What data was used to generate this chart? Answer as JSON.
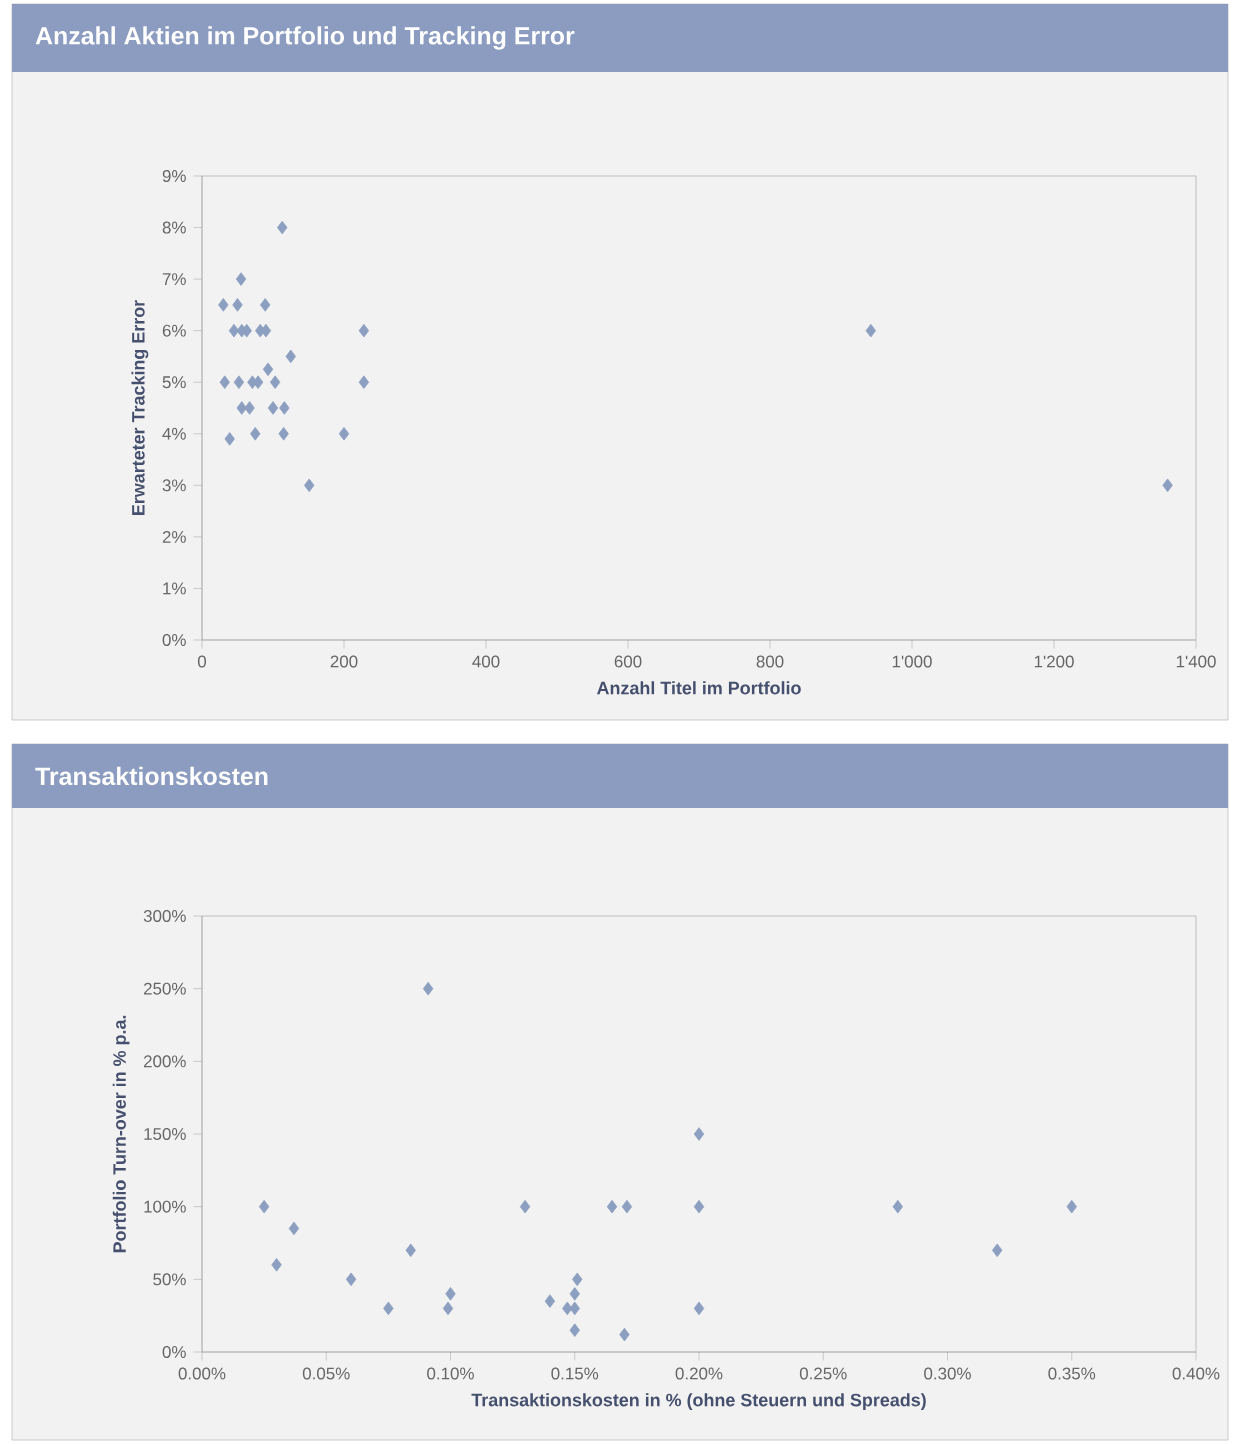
{
  "chart_data": [
    {
      "type": "scatter",
      "title": "Anzahl Aktien im Portfolio und Tracking Error",
      "xlabel": "Anzahl Titel im Portfolio",
      "ylabel": "Erwarteter Tracking Error",
      "color": "#8c9fc0",
      "marker": "diamond",
      "x": [
        113,
        55,
        30,
        50,
        89,
        45,
        56,
        63,
        82,
        90,
        228,
        125,
        93,
        32,
        52,
        71,
        79,
        103,
        228,
        56,
        67,
        100,
        116,
        75,
        115,
        200,
        39,
        151,
        942,
        1360
      ],
      "values": [
        8,
        7,
        6.5,
        6.5,
        6.5,
        6,
        6,
        6,
        6,
        6,
        6,
        5.5,
        5.25,
        5,
        5,
        5,
        5,
        5,
        5,
        4.5,
        4.5,
        4.5,
        4.5,
        4,
        4,
        4,
        3.9,
        3,
        6,
        3
      ],
      "xlim": [
        0,
        1400
      ],
      "ylim": [
        0,
        9
      ],
      "xticks": [
        0,
        200,
        400,
        600,
        800,
        {
          "value": 1000,
          "label": "1'000"
        },
        {
          "value": 1200,
          "label": "1'200"
        },
        {
          "value": 1400,
          "label": "1'400"
        }
      ],
      "yticks": [
        {
          "value": 0,
          "label": "0%"
        },
        {
          "value": 1,
          "label": "1%"
        },
        {
          "value": 2,
          "label": "2%"
        },
        {
          "value": 3,
          "label": "3%"
        },
        {
          "value": 4,
          "label": "4%"
        },
        {
          "value": 5,
          "label": "5%"
        },
        {
          "value": 6,
          "label": "6%"
        },
        {
          "value": 7,
          "label": "7%"
        },
        {
          "value": 8,
          "label": "8%"
        },
        {
          "value": 9,
          "label": "9%"
        }
      ]
    },
    {
      "type": "scatter",
      "title": "Transaktionskosten",
      "xlabel": "Transaktionskosten in % (ohne Steuern und Spreads)",
      "ylabel": "Portfolio Turn-over in % p.a.",
      "color": "#8c9fc0",
      "marker": "diamond",
      "x": [
        0.025,
        0.03,
        0.037,
        0.06,
        0.075,
        0.084,
        0.091,
        0.1,
        0.099,
        0.13,
        0.14,
        0.147,
        0.151,
        0.15,
        0.15,
        0.15,
        0.165,
        0.171,
        0.17,
        0.2,
        0.2,
        0.2,
        0.28,
        0.32,
        0.35
      ],
      "values": [
        100,
        60,
        85,
        50,
        30,
        70,
        250,
        40,
        30,
        100,
        35,
        30,
        50,
        40,
        30,
        15,
        100,
        100,
        12,
        150,
        100,
        30,
        100,
        70,
        100
      ],
      "xlim": [
        0,
        0.4
      ],
      "ylim": [
        0,
        300
      ],
      "xticks": [
        {
          "value": 0,
          "label": "0.00%"
        },
        {
          "value": 0.05,
          "label": "0.05%"
        },
        {
          "value": 0.1,
          "label": "0.10%"
        },
        {
          "value": 0.15,
          "label": "0.15%"
        },
        {
          "value": 0.2,
          "label": "0.20%"
        },
        {
          "value": 0.25,
          "label": "0.25%"
        },
        {
          "value": 0.3,
          "label": "0.30%"
        },
        {
          "value": 0.35,
          "label": "0.35%"
        },
        {
          "value": 0.4,
          "label": "0.40%"
        }
      ],
      "yticks": [
        {
          "value": 0,
          "label": "0%"
        },
        {
          "value": 50,
          "label": "50%"
        },
        {
          "value": 100,
          "label": "100%"
        },
        {
          "value": 150,
          "label": "150%"
        },
        {
          "value": 200,
          "label": "200%"
        },
        {
          "value": 250,
          "label": "250%"
        },
        {
          "value": 300,
          "label": "300%"
        }
      ]
    }
  ]
}
